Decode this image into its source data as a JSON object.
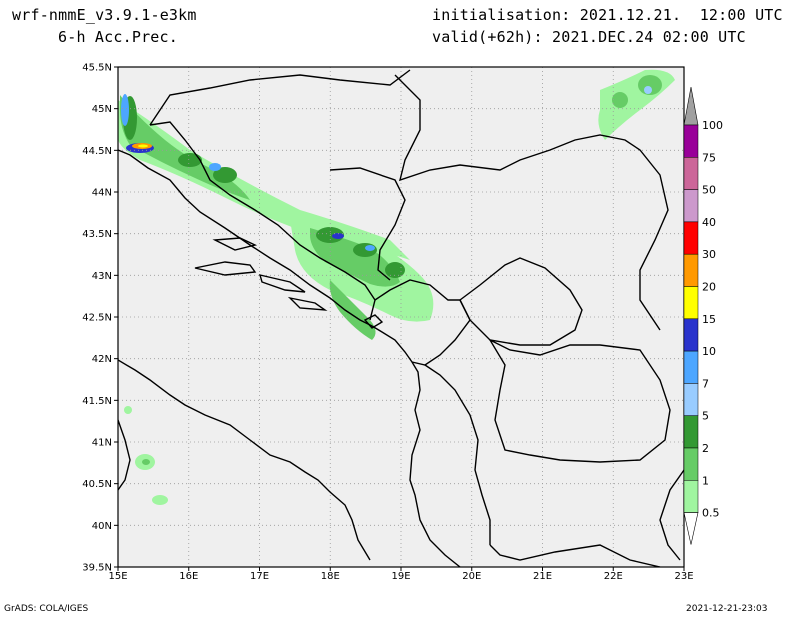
{
  "header": {
    "model": "wrf-nmmE_v3.9.1-e3km",
    "field": "6-h Acc.Prec.",
    "init": "initialisation: 2021.12.21.  12:00 UTC",
    "valid": "valid(+62h): 2021.DEC.24 02:00 UTC"
  },
  "footer": {
    "credit": "GrADS: COLA/IGES",
    "timestamp": "2021-12-21-23:03"
  },
  "map": {
    "lon_range": [
      15,
      23
    ],
    "lat_range": [
      39.5,
      45.5
    ],
    "lon_ticks": [
      "15E",
      "16E",
      "17E",
      "18E",
      "19E",
      "20E",
      "21E",
      "22E",
      "23E"
    ],
    "lat_ticks": [
      "39.5N",
      "40N",
      "40.5N",
      "41N",
      "41.5N",
      "42N",
      "42.5N",
      "43N",
      "43.5N",
      "44N",
      "44.5N",
      "45N",
      "45.5N"
    ],
    "grid": true,
    "background": "#efefef"
  },
  "colorbar": {
    "levels": [
      "0.5",
      "1",
      "2",
      "5",
      "7",
      "10",
      "15",
      "20",
      "30",
      "40",
      "50",
      "75",
      "100"
    ],
    "colors": [
      "#a0f5a0",
      "#66cc66",
      "#339933",
      "#99ccff",
      "#4da6ff",
      "#2a33cc",
      "#ffff00",
      "#ff9900",
      "#ff0000",
      "#cc99cc",
      "#cc6699",
      "#990099"
    ],
    "top_color": "#a0a0a0"
  }
}
